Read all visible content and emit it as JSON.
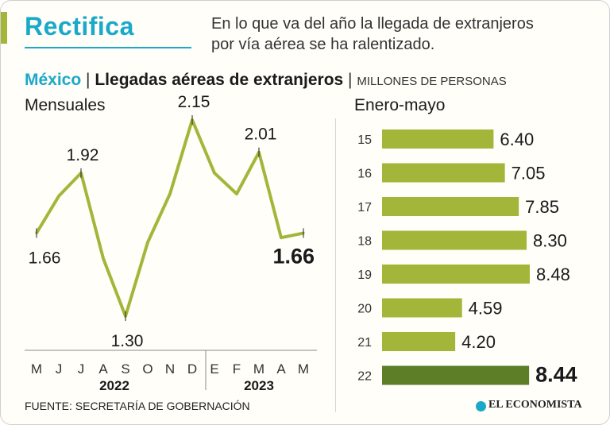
{
  "header": {
    "title": "Rectifica",
    "subtitle_line1": "En lo que va del año la llegada de extranjeros",
    "subtitle_line2": "por vía aérea se ha ralentizado.",
    "country": "México",
    "separator": "|",
    "chart_title": "Llegadas aéreas de extranjeros",
    "units": "MILLONES DE PERSONAS"
  },
  "colors": {
    "accent": "#1aa9c9",
    "series": "#a4b63a",
    "highlight": "#5e7d27",
    "title_bar": "#a4b63a"
  },
  "chart_data": [
    {
      "type": "line",
      "title": "Mensuales",
      "x": [
        "M",
        "J",
        "J",
        "A",
        "S",
        "O",
        "N",
        "D",
        "E",
        "F",
        "M",
        "A",
        "M"
      ],
      "year_groups": [
        {
          "label": "2022",
          "span": [
            "M",
            "D"
          ]
        },
        {
          "label": "2023",
          "span": [
            "E",
            "M"
          ]
        }
      ],
      "values": [
        1.66,
        1.82,
        1.92,
        1.55,
        1.3,
        1.62,
        1.83,
        2.15,
        1.92,
        1.83,
        2.01,
        1.64,
        1.66
      ],
      "labeled_points": [
        {
          "index": 0,
          "label": "1.66"
        },
        {
          "index": 2,
          "label": "1.92"
        },
        {
          "index": 4,
          "label": "1.30"
        },
        {
          "index": 7,
          "label": "2.15"
        },
        {
          "index": 10,
          "label": "2.01"
        },
        {
          "index": 12,
          "label": "1.66",
          "emphasis": true
        }
      ],
      "ylim": [
        1.2,
        2.25
      ],
      "grid": false
    },
    {
      "type": "bar",
      "orientation": "horizontal",
      "title": "Enero-mayo",
      "categories": [
        "15",
        "16",
        "17",
        "18",
        "19",
        "20",
        "21",
        "22"
      ],
      "values": [
        6.4,
        7.05,
        7.85,
        8.3,
        8.48,
        4.59,
        4.2,
        8.44
      ],
      "labels": [
        "6.40",
        "7.05",
        "7.85",
        "8.30",
        "8.48",
        "4.59",
        "4.20",
        "8.44"
      ],
      "highlight_index": 7,
      "xlim": [
        0,
        8.48
      ]
    }
  ],
  "footer": {
    "source": "FUENTE:  SECRETARÍA DE GOBERNACIÓN",
    "brand": "EL ECONOMISTA"
  }
}
